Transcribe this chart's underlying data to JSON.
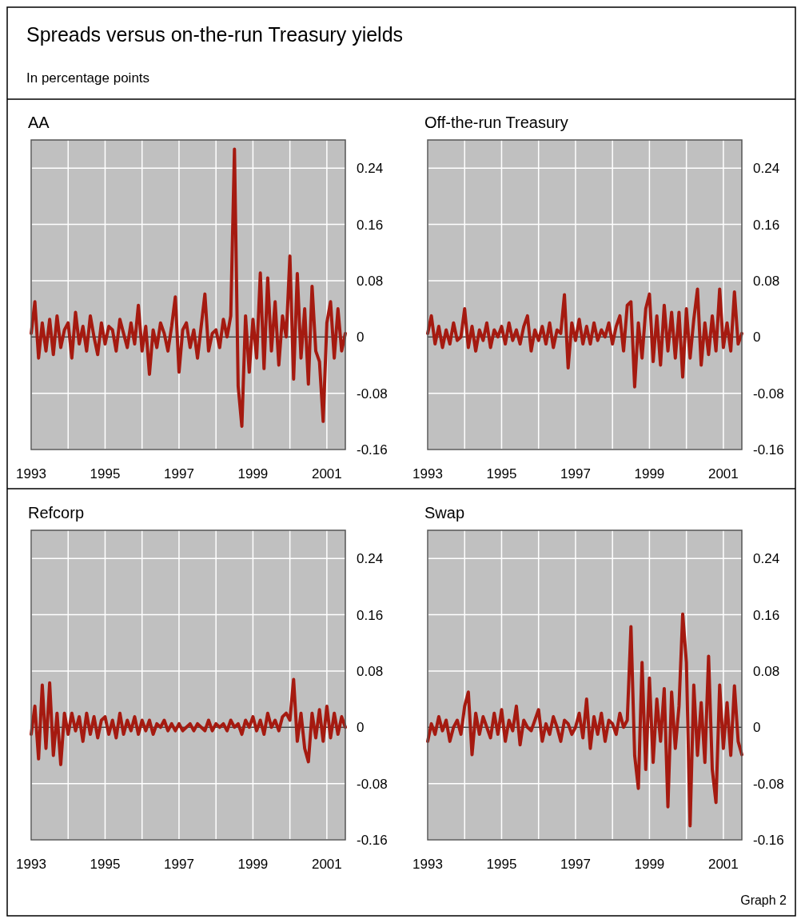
{
  "chart_data": [
    {
      "type": "other",
      "title": "Spreads versus on-the-run Treasury yields",
      "subtitle": "In percentage points",
      "annotations": [
        "Graph 2"
      ]
    },
    {
      "type": "line",
      "title": "AA",
      "color": "#a51a10",
      "grid": true,
      "xlim": [
        1993,
        2001.5
      ],
      "ylim": [
        -0.16,
        0.28
      ],
      "xticks": [
        1993,
        {
          "value": 1994,
          "label": null
        },
        1995,
        {
          "value": 1996,
          "label": null
        },
        1997,
        {
          "value": 1998,
          "label": null
        },
        1999,
        {
          "value": 2000,
          "label": null
        },
        2001
      ],
      "yticks": [
        -0.16,
        -0.08,
        0,
        0.08,
        0.16,
        0.24
      ],
      "ref_lines": [
        {
          "axis": "y",
          "value": 0,
          "color": "#404040"
        }
      ],
      "x": [
        1993,
        1993.1,
        1993.2,
        1993.3,
        1993.4,
        1993.5,
        1993.6,
        1993.7,
        1993.8,
        1993.9,
        1994,
        1994.1,
        1994.2,
        1994.3,
        1994.4,
        1994.5,
        1994.6,
        1994.7,
        1994.8,
        1994.9,
        1995,
        1995.1,
        1995.2,
        1995.3,
        1995.4,
        1995.5,
        1995.6,
        1995.7,
        1995.8,
        1995.9,
        1996,
        1996.1,
        1996.2,
        1996.3,
        1996.4,
        1996.5,
        1996.6,
        1996.7,
        1996.8,
        1996.9,
        1997,
        1997.1,
        1997.2,
        1997.3,
        1997.4,
        1997.5,
        1997.6,
        1997.7,
        1997.8,
        1997.9,
        1998,
        1998.1,
        1998.2,
        1998.3,
        1998.4,
        1998.5,
        1998.6,
        1998.7,
        1998.8,
        1998.9,
        1999,
        1999.1,
        1999.2,
        1999.3,
        1999.4,
        1999.5,
        1999.6,
        1999.7,
        1999.8,
        1999.9,
        2000,
        2000.1,
        2000.2,
        2000.3,
        2000.4,
        2000.5,
        2000.6,
        2000.7,
        2000.8,
        2000.9,
        2001,
        2001.1,
        2001.2,
        2001.3,
        2001.4,
        2001.5
      ],
      "values": [
        0.005,
        0.05,
        -0.03,
        0.02,
        -0.02,
        0.025,
        -0.025,
        0.03,
        -0.015,
        0.01,
        0.02,
        -0.03,
        0.035,
        -0.01,
        0.015,
        -0.02,
        0.03,
        0.0,
        -0.025,
        0.02,
        -0.01,
        0.015,
        0.01,
        -0.02,
        0.025,
        0.005,
        -0.015,
        0.02,
        -0.01,
        0.045,
        -0.02,
        0.015,
        -0.053,
        0.01,
        -0.015,
        0.02,
        0.005,
        -0.02,
        0.015,
        0.057,
        -0.05,
        0.01,
        0.02,
        -0.015,
        0.01,
        -0.03,
        0.015,
        0.061,
        -0.02,
        0.005,
        0.01,
        -0.015,
        0.025,
        0.0,
        0.03,
        0.267,
        -0.07,
        -0.127,
        0.03,
        -0.05,
        0.025,
        -0.03,
        0.091,
        -0.045,
        0.084,
        -0.02,
        0.05,
        -0.04,
        0.03,
        0.0,
        0.115,
        -0.06,
        0.09,
        -0.03,
        0.04,
        -0.067,
        0.072,
        -0.02,
        -0.035,
        -0.12,
        0.02,
        0.05,
        -0.03,
        0.04,
        -0.02,
        0.005
      ]
    },
    {
      "type": "line",
      "title": "Off-the-run Treasury",
      "color": "#a51a10",
      "grid": true,
      "xlim": [
        1993,
        2001.5
      ],
      "ylim": [
        -0.16,
        0.28
      ],
      "xticks": [
        1993,
        {
          "value": 1994,
          "label": null
        },
        1995,
        {
          "value": 1996,
          "label": null
        },
        1997,
        {
          "value": 1998,
          "label": null
        },
        1999,
        {
          "value": 2000,
          "label": null
        },
        2001
      ],
      "yticks": [
        -0.16,
        -0.08,
        0,
        0.08,
        0.16,
        0.24
      ],
      "ref_lines": [
        {
          "axis": "y",
          "value": 0,
          "color": "#404040"
        }
      ],
      "x": [
        1993,
        1993.1,
        1993.2,
        1993.3,
        1993.4,
        1993.5,
        1993.6,
        1993.7,
        1993.8,
        1993.9,
        1994,
        1994.1,
        1994.2,
        1994.3,
        1994.4,
        1994.5,
        1994.6,
        1994.7,
        1994.8,
        1994.9,
        1995,
        1995.1,
        1995.2,
        1995.3,
        1995.4,
        1995.5,
        1995.6,
        1995.7,
        1995.8,
        1995.9,
        1996,
        1996.1,
        1996.2,
        1996.3,
        1996.4,
        1996.5,
        1996.6,
        1996.7,
        1996.8,
        1996.9,
        1997,
        1997.1,
        1997.2,
        1997.3,
        1997.4,
        1997.5,
        1997.6,
        1997.7,
        1997.8,
        1997.9,
        1998,
        1998.1,
        1998.2,
        1998.3,
        1998.4,
        1998.5,
        1998.6,
        1998.7,
        1998.8,
        1998.9,
        1999,
        1999.1,
        1999.2,
        1999.3,
        1999.4,
        1999.5,
        1999.6,
        1999.7,
        1999.8,
        1999.9,
        2000,
        2000.1,
        2000.2,
        2000.3,
        2000.4,
        2000.5,
        2000.6,
        2000.7,
        2000.8,
        2000.9,
        2001,
        2001.1,
        2001.2,
        2001.3,
        2001.4,
        2001.5
      ],
      "values": [
        0.005,
        0.03,
        -0.01,
        0.015,
        -0.015,
        0.01,
        -0.01,
        0.02,
        -0.005,
        0.0,
        0.04,
        -0.015,
        0.015,
        -0.02,
        0.01,
        -0.005,
        0.02,
        -0.015,
        0.01,
        0.0,
        0.015,
        -0.01,
        0.02,
        -0.005,
        0.01,
        -0.01,
        0.015,
        0.03,
        -0.02,
        0.01,
        -0.005,
        0.015,
        -0.01,
        0.02,
        -0.015,
        0.01,
        0.005,
        0.06,
        -0.044,
        0.02,
        -0.005,
        0.025,
        -0.01,
        0.015,
        -0.01,
        0.02,
        -0.005,
        0.01,
        0.0,
        0.02,
        -0.01,
        0.015,
        0.03,
        -0.02,
        0.045,
        0.05,
        -0.071,
        0.02,
        -0.03,
        0.04,
        0.061,
        -0.035,
        0.03,
        -0.04,
        0.045,
        -0.02,
        0.035,
        -0.03,
        0.035,
        -0.057,
        0.04,
        -0.03,
        0.025,
        0.068,
        -0.04,
        0.02,
        -0.025,
        0.03,
        -0.02,
        0.068,
        -0.015,
        0.02,
        -0.02,
        0.064,
        -0.01,
        0.005
      ]
    },
    {
      "type": "line",
      "title": "Refcorp",
      "color": "#a51a10",
      "grid": true,
      "xlim": [
        1993,
        2001.5
      ],
      "ylim": [
        -0.16,
        0.28
      ],
      "xticks": [
        1993,
        {
          "value": 1994,
          "label": null
        },
        1995,
        {
          "value": 1996,
          "label": null
        },
        1997,
        {
          "value": 1998,
          "label": null
        },
        1999,
        {
          "value": 2000,
          "label": null
        },
        2001
      ],
      "yticks": [
        -0.16,
        -0.08,
        0,
        0.08,
        0.16,
        0.24
      ],
      "ref_lines": [
        {
          "axis": "y",
          "value": 0,
          "color": "#404040"
        }
      ],
      "x": [
        1993,
        1993.1,
        1993.2,
        1993.3,
        1993.4,
        1993.5,
        1993.6,
        1993.7,
        1993.8,
        1993.9,
        1994,
        1994.1,
        1994.2,
        1994.3,
        1994.4,
        1994.5,
        1994.6,
        1994.7,
        1994.8,
        1994.9,
        1995,
        1995.1,
        1995.2,
        1995.3,
        1995.4,
        1995.5,
        1995.6,
        1995.7,
        1995.8,
        1995.9,
        1996,
        1996.1,
        1996.2,
        1996.3,
        1996.4,
        1996.5,
        1996.6,
        1996.7,
        1996.8,
        1996.9,
        1997,
        1997.1,
        1997.2,
        1997.3,
        1997.4,
        1997.5,
        1997.6,
        1997.7,
        1997.8,
        1997.9,
        1998,
        1998.1,
        1998.2,
        1998.3,
        1998.4,
        1998.5,
        1998.6,
        1998.7,
        1998.8,
        1998.9,
        1999,
        1999.1,
        1999.2,
        1999.3,
        1999.4,
        1999.5,
        1999.6,
        1999.7,
        1999.8,
        1999.9,
        2000,
        2000.1,
        2000.2,
        2000.3,
        2000.4,
        2000.5,
        2000.6,
        2000.7,
        2000.8,
        2000.9,
        2001,
        2001.1,
        2001.2,
        2001.3,
        2001.4,
        2001.5
      ],
      "values": [
        -0.01,
        0.03,
        -0.045,
        0.06,
        -0.03,
        0.063,
        -0.04,
        0.02,
        -0.053,
        0.02,
        -0.01,
        0.02,
        -0.005,
        0.015,
        -0.02,
        0.02,
        -0.01,
        0.015,
        -0.015,
        0.01,
        0.015,
        -0.01,
        0.01,
        -0.015,
        0.02,
        -0.01,
        0.01,
        -0.005,
        0.015,
        -0.01,
        0.01,
        -0.005,
        0.01,
        -0.01,
        0.005,
        0.0,
        0.01,
        -0.005,
        0.005,
        -0.005,
        0.005,
        -0.005,
        0.0,
        0.005,
        -0.005,
        0.005,
        0.0,
        -0.005,
        0.01,
        -0.005,
        0.005,
        0.0,
        0.005,
        -0.005,
        0.01,
        0.0,
        0.005,
        -0.01,
        0.01,
        0.0,
        0.015,
        -0.005,
        0.01,
        -0.01,
        0.02,
        0.0,
        0.01,
        -0.005,
        0.015,
        0.02,
        0.01,
        0.068,
        -0.02,
        0.02,
        -0.03,
        -0.049,
        0.02,
        -0.015,
        0.025,
        -0.02,
        0.03,
        -0.015,
        0.02,
        -0.01,
        0.015,
        0.0
      ]
    },
    {
      "type": "line",
      "title": "Swap",
      "color": "#a51a10",
      "grid": true,
      "xlim": [
        1993,
        2001.5
      ],
      "ylim": [
        -0.16,
        0.28
      ],
      "xticks": [
        1993,
        {
          "value": 1994,
          "label": null
        },
        1995,
        {
          "value": 1996,
          "label": null
        },
        1997,
        {
          "value": 1998,
          "label": null
        },
        1999,
        {
          "value": 2000,
          "label": null
        },
        2001
      ],
      "yticks": [
        -0.16,
        -0.08,
        0,
        0.08,
        0.16,
        0.24
      ],
      "ref_lines": [
        {
          "axis": "y",
          "value": 0,
          "color": "#404040"
        }
      ],
      "x": [
        1993,
        1993.1,
        1993.2,
        1993.3,
        1993.4,
        1993.5,
        1993.6,
        1993.7,
        1993.8,
        1993.9,
        1994,
        1994.1,
        1994.2,
        1994.3,
        1994.4,
        1994.5,
        1994.6,
        1994.7,
        1994.8,
        1994.9,
        1995,
        1995.1,
        1995.2,
        1995.3,
        1995.4,
        1995.5,
        1995.6,
        1995.7,
        1995.8,
        1995.9,
        1996,
        1996.1,
        1996.2,
        1996.3,
        1996.4,
        1996.5,
        1996.6,
        1996.7,
        1996.8,
        1996.9,
        1997,
        1997.1,
        1997.2,
        1997.3,
        1997.4,
        1997.5,
        1997.6,
        1997.7,
        1997.8,
        1997.9,
        1998,
        1998.1,
        1998.2,
        1998.3,
        1998.4,
        1998.5,
        1998.6,
        1998.7,
        1998.8,
        1998.9,
        1999,
        1999.1,
        1999.2,
        1999.3,
        1999.4,
        1999.5,
        1999.6,
        1999.7,
        1999.8,
        1999.9,
        2000,
        2000.1,
        2000.2,
        2000.3,
        2000.4,
        2000.5,
        2000.6,
        2000.7,
        2000.8,
        2000.9,
        2001,
        2001.1,
        2001.2,
        2001.3,
        2001.4,
        2001.5
      ],
      "values": [
        -0.02,
        0.005,
        -0.01,
        0.015,
        -0.005,
        0.01,
        -0.02,
        0.0,
        0.01,
        -0.01,
        0.03,
        0.05,
        -0.039,
        0.02,
        -0.01,
        0.015,
        0.0,
        -0.015,
        0.02,
        -0.01,
        0.025,
        -0.02,
        0.01,
        -0.005,
        0.03,
        -0.025,
        0.01,
        0.0,
        -0.005,
        0.01,
        0.025,
        -0.02,
        0.005,
        -0.01,
        0.015,
        0.0,
        -0.02,
        0.01,
        0.005,
        -0.01,
        0.0,
        0.02,
        -0.015,
        0.04,
        -0.03,
        0.015,
        -0.01,
        0.02,
        -0.02,
        0.01,
        0.005,
        -0.01,
        0.02,
        0.0,
        0.01,
        0.143,
        -0.04,
        -0.087,
        0.092,
        -0.06,
        0.07,
        -0.05,
        0.04,
        -0.02,
        0.055,
        -0.113,
        0.05,
        -0.03,
        0.03,
        0.161,
        0.092,
        -0.14,
        0.06,
        -0.04,
        0.035,
        -0.05,
        0.101,
        -0.06,
        -0.107,
        0.06,
        -0.03,
        0.035,
        -0.04,
        0.059,
        -0.02,
        -0.039
      ]
    }
  ]
}
